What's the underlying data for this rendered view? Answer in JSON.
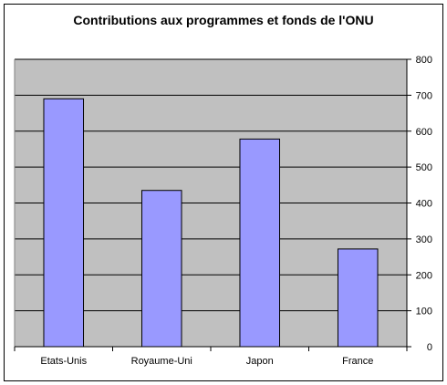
{
  "chart_data": {
    "type": "bar",
    "title": "Contributions aux programmes et fonds de l'ONU",
    "categories": [
      "Etats-Unis",
      "Royaume-Uni",
      "Japon",
      "France"
    ],
    "values": [
      690,
      435,
      578,
      272
    ],
    "ylim": [
      0,
      800
    ],
    "yticks": [
      0,
      100,
      200,
      300,
      400,
      500,
      600,
      700,
      800
    ],
    "yaxis_side": "right",
    "grid": true,
    "legend": "none",
    "colors": {
      "bar": "#9999ff",
      "plot_background": "#c0c0c0",
      "gridline": "#000000"
    }
  }
}
